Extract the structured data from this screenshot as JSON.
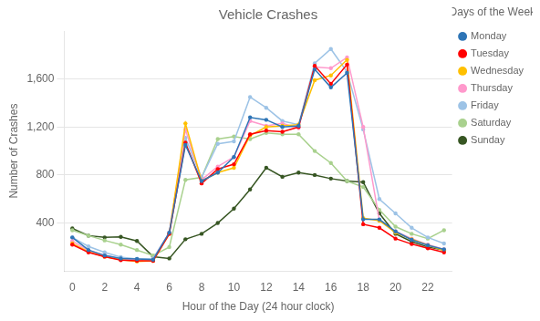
{
  "chart_data": {
    "type": "line",
    "title": "Vehicle Crashes",
    "xlabel": "Hour of the Day (24 hour clock)",
    "ylabel": "Number of Crashes",
    "legend_title": "Days of the Week",
    "x": [
      0,
      1,
      2,
      3,
      4,
      5,
      6,
      7,
      8,
      9,
      10,
      11,
      12,
      13,
      14,
      15,
      16,
      17,
      18,
      19,
      20,
      21,
      22,
      23
    ],
    "series": [
      {
        "name": "Monday",
        "color": "#2E75B6",
        "values": [
          280,
          175,
          130,
          105,
          100,
          95,
          320,
          1050,
          750,
          820,
          950,
          1280,
          1260,
          1200,
          1210,
          1680,
          1530,
          1650,
          430,
          430,
          330,
          260,
          215,
          180
        ]
      },
      {
        "name": "Tuesday",
        "color": "#FF0000",
        "values": [
          220,
          155,
          120,
          90,
          85,
          85,
          310,
          1070,
          730,
          850,
          890,
          1140,
          1170,
          1160,
          1200,
          1710,
          1560,
          1720,
          390,
          360,
          270,
          225,
          190,
          155
        ]
      },
      {
        "name": "Wednesday",
        "color": "#FFC000",
        "values": [
          230,
          160,
          120,
          95,
          80,
          85,
          310,
          1230,
          750,
          820,
          860,
          1130,
          1200,
          1210,
          1220,
          1590,
          1630,
          1760,
          440,
          420,
          320,
          265,
          215,
          170
        ]
      },
      {
        "name": "Thursday",
        "color": "#FF99CC",
        "values": [
          250,
          170,
          130,
          100,
          95,
          95,
          320,
          1180,
          760,
          870,
          950,
          1250,
          1210,
          1230,
          1190,
          1700,
          1690,
          1780,
          1200,
          420,
          330,
          270,
          220,
          180
        ]
      },
      {
        "name": "Friday",
        "color": "#9DC3E6",
        "values": [
          280,
          205,
          155,
          115,
          100,
          105,
          320,
          1110,
          780,
          1060,
          1080,
          1450,
          1360,
          1250,
          1220,
          1730,
          1850,
          1660,
          1180,
          600,
          480,
          360,
          280,
          230
        ]
      },
      {
        "name": "Saturday",
        "color": "#A9D18E",
        "values": [
          340,
          295,
          255,
          220,
          175,
          130,
          200,
          760,
          780,
          1100,
          1120,
          1100,
          1150,
          1140,
          1140,
          1000,
          900,
          750,
          700,
          510,
          370,
          310,
          270,
          340
        ]
      },
      {
        "name": "Sunday",
        "color": "#375623",
        "values": [
          355,
          295,
          280,
          285,
          250,
          120,
          105,
          265,
          310,
          400,
          520,
          680,
          860,
          785,
          820,
          800,
          770,
          750,
          740,
          480,
          310,
          245,
          200,
          175
        ]
      }
    ],
    "xlim": [
      -0.5,
      23.5
    ],
    "xticks": [
      0,
      2,
      4,
      6,
      8,
      10,
      12,
      14,
      16,
      18,
      20,
      22
    ],
    "ylim": [
      0,
      2000
    ],
    "yticks": [
      400,
      800,
      {
        "value": 1200,
        "label": "1,200"
      },
      {
        "value": 1600,
        "label": "1,600"
      }
    ],
    "grid": "y",
    "legend": "right",
    "marker": "circle"
  }
}
